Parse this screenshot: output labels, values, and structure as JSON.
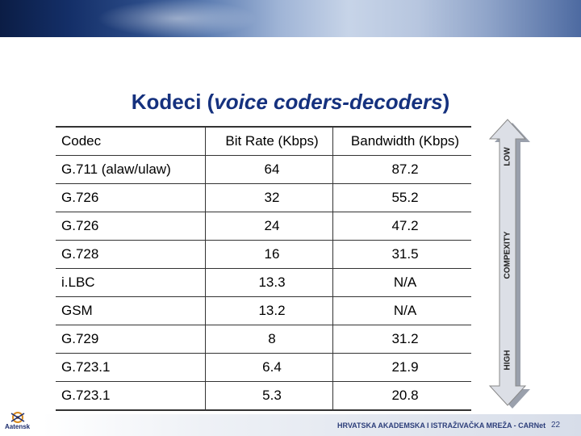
{
  "title": {
    "main": "Kodeci (",
    "italic": "voice coders-decoders",
    "end": ")"
  },
  "table": {
    "headers": [
      "Codec",
      "Bit Rate (Kbps)",
      "Bandwidth (Kbps)"
    ],
    "rows": [
      [
        "G.711 (alaw/ulaw)",
        "64",
        "87.2"
      ],
      [
        "G.726",
        "32",
        "55.2"
      ],
      [
        "G.726",
        "24",
        "47.2"
      ],
      [
        "G.728",
        "16",
        "31.5"
      ],
      [
        "i.LBC",
        "13.3",
        "N/A"
      ],
      [
        "GSM",
        "13.2",
        "N/A"
      ],
      [
        "G.729",
        "8",
        "31.2"
      ],
      [
        "G.723.1",
        "6.4",
        "21.9"
      ],
      [
        "G.723.1",
        "5.3",
        "20.8"
      ]
    ]
  },
  "arrow": {
    "top_label": "LOW",
    "middle_label": "COMPEXITY",
    "bottom_label": "HIGH",
    "fill_color": "#dcdfe6",
    "stroke_color": "#888888"
  },
  "footer": {
    "logo_text": "Aatensk",
    "organization": "HRVATSKA AKADEMSKA I ISTRAŽIVAČKA MREŽA - CARNet",
    "page_number": "22"
  },
  "colors": {
    "title": "#15317e",
    "banner_dark": "#0b1d45"
  }
}
